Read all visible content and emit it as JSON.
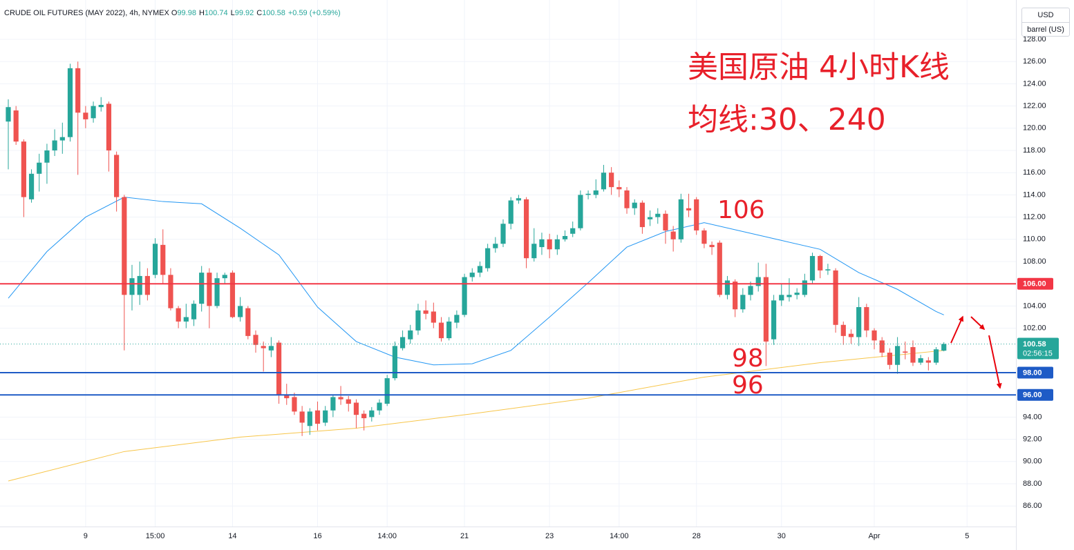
{
  "header": {
    "symbol": "CRUDE OIL FUTURES (MAY 2022), 4h, NYMEX",
    "ohlc": [
      {
        "label": "O",
        "value": "99.98"
      },
      {
        "label": "H",
        "value": "100.74"
      },
      {
        "label": "L",
        "value": "99.92"
      },
      {
        "label": "C",
        "value": "100.58"
      }
    ],
    "change": "+0.59 (+0.59%)"
  },
  "currency": {
    "unit": "USD",
    "measure": "barrel (US)"
  },
  "annotations": {
    "title": "美国原油 4小时K线",
    "ma": "均线:30、240",
    "level_106": "106",
    "level_98": "98",
    "level_96": "96"
  },
  "chart_data": {
    "type": "candlestick",
    "categories": [
      null,
      null,
      null,
      null,
      null,
      null,
      null,
      null,
      null,
      null,
      "9",
      null,
      null,
      null,
      null,
      null,
      null,
      null,
      null,
      "15:00",
      null,
      null,
      null,
      null,
      null,
      null,
      null,
      null,
      null,
      "14",
      null,
      null,
      null,
      null,
      null,
      null,
      null,
      null,
      null,
      null,
      "16",
      null,
      null,
      null,
      null,
      null,
      null,
      null,
      null,
      "14:00",
      null,
      null,
      null,
      null,
      null,
      null,
      null,
      null,
      null,
      "21",
      null,
      null,
      null,
      null,
      null,
      null,
      null,
      null,
      null,
      null,
      "23",
      null,
      null,
      null,
      null,
      null,
      null,
      null,
      null,
      "14:00",
      null,
      null,
      null,
      null,
      null,
      null,
      null,
      null,
      null,
      "28",
      null,
      null,
      null,
      null,
      null,
      null,
      null,
      null,
      null,
      null,
      "30",
      null,
      null,
      null,
      null,
      null,
      null,
      null,
      null,
      null,
      null,
      null,
      "Apr",
      null,
      null,
      null,
      null,
      null,
      null,
      null,
      null,
      null,
      null,
      null,
      "5",
      null,
      null,
      null,
      null,
      null,
      null
    ],
    "open": [
      120.6,
      121.6,
      118.8,
      113.6,
      115.9,
      116.9,
      118.0,
      118.9,
      119.2,
      125.4,
      121.4,
      120.9,
      121.9,
      122.2,
      117.6,
      113.8,
      105.0,
      105.0,
      106.7,
      106.8,
      109.5,
      106.8,
      103.8,
      102.6,
      102.8,
      104.2,
      107.0,
      104.0,
      106.5,
      107.0,
      103.0,
      103.8,
      101.4,
      100.4,
      100.0,
      100.7,
      96.0,
      95.8,
      94.5,
      93.2,
      94.6,
      93.5,
      94.6,
      95.8,
      95.6,
      95.3,
      94.3,
      94.0,
      94.6,
      95.2,
      97.5,
      100.2,
      101.0,
      101.8,
      103.6,
      103.5,
      102.5,
      101.1,
      102.5,
      103.2,
      106.6,
      107.0,
      107.4,
      109.2,
      109.6,
      111.4,
      113.5,
      113.6,
      108.3,
      109.3,
      110.0,
      109.1,
      110.0,
      110.5,
      111.0,
      114.0,
      114.0,
      114.5,
      116.0,
      114.7,
      114.4,
      112.8,
      113.3,
      111.8,
      112.0,
      112.3,
      110.7,
      110.0,
      112.8,
      113.6,
      110.8,
      109.5,
      109.7,
      105.0,
      106.2,
      103.7,
      105.0,
      105.8,
      106.6,
      101.0,
      104.5,
      104.8,
      105.0,
      105.0,
      106.3,
      108.5,
      107.2,
      107.2,
      102.3,
      101.5,
      101.2,
      103.9,
      101.8,
      100.9,
      99.8,
      98.7,
      99.9,
      100.3,
      98.9,
      99.1,
      98.9,
      99.98,
      null,
      null,
      null,
      null,
      null,
      null,
      null,
      null,
      null
    ],
    "high": [
      122.6,
      122.0,
      119.0,
      116.3,
      117.7,
      118.6,
      119.9,
      120.5,
      125.8,
      126.0,
      122.0,
      122.4,
      122.8,
      122.4,
      117.9,
      114.0,
      107.7,
      108.0,
      107.4,
      110.1,
      110.9,
      107.4,
      104.0,
      104.2,
      104.5,
      107.6,
      107.4,
      107.0,
      107.0,
      107.2,
      104.8,
      104.0,
      101.8,
      100.8,
      101.2,
      100.9,
      97.0,
      96.2,
      95.0,
      94.8,
      95.4,
      95.0,
      96.0,
      96.8,
      95.9,
      95.6,
      94.6,
      94.9,
      95.6,
      97.8,
      100.8,
      101.8,
      102.3,
      104.2,
      104.5,
      104.3,
      103.0,
      103.0,
      103.6,
      106.9,
      107.4,
      108.0,
      109.6,
      110.2,
      111.8,
      113.8,
      114.0,
      113.8,
      111.0,
      110.6,
      110.5,
      110.4,
      110.8,
      111.6,
      114.4,
      114.4,
      115.4,
      116.7,
      116.5,
      115.3,
      114.7,
      113.6,
      113.5,
      112.6,
      112.8,
      112.6,
      111.2,
      114.1,
      114.1,
      113.8,
      111.0,
      109.8,
      109.9,
      106.7,
      106.4,
      105.6,
      106.2,
      107.9,
      107.8,
      105.0,
      106.0,
      106.5,
      105.6,
      106.9,
      108.8,
      108.6,
      107.8,
      107.4,
      102.6,
      101.9,
      104.8,
      104.2,
      102.0,
      101.2,
      100.2,
      101.2,
      100.8,
      100.9,
      99.6,
      99.4,
      100.3,
      100.74,
      null,
      null,
      null,
      null,
      null,
      null,
      null,
      null,
      null
    ],
    "low": [
      116.3,
      118.5,
      112.0,
      113.3,
      114.3,
      115.0,
      117.5,
      117.7,
      118.8,
      115.8,
      120.0,
      120.5,
      121.5,
      116.1,
      112.5,
      100.0,
      103.6,
      104.1,
      104.5,
      106.5,
      106.0,
      103.6,
      102.0,
      102.0,
      102.2,
      103.5,
      102.0,
      103.8,
      106.0,
      102.9,
      102.6,
      101.0,
      99.8,
      98.1,
      99.4,
      95.2,
      95.1,
      94.2,
      92.3,
      92.4,
      92.8,
      93.2,
      94.0,
      95.1,
      94.5,
      93.0,
      92.8,
      93.6,
      94.2,
      95.0,
      97.3,
      100.0,
      100.6,
      101.4,
      102.8,
      102.0,
      100.8,
      100.9,
      102.0,
      103.0,
      106.2,
      106.6,
      107.1,
      108.8,
      109.3,
      110.9,
      113.2,
      107.4,
      108.0,
      108.6,
      108.3,
      108.6,
      109.8,
      110.2,
      110.8,
      113.6,
      113.7,
      114.3,
      114.0,
      113.8,
      112.3,
      112.2,
      110.5,
      111.2,
      111.4,
      109.6,
      108.9,
      109.7,
      112.0,
      110.4,
      109.2,
      108.6,
      104.8,
      104.6,
      103.0,
      103.4,
      104.5,
      105.3,
      98.6,
      100.5,
      104.0,
      104.4,
      104.6,
      104.8,
      106.0,
      106.5,
      106.8,
      101.6,
      100.5,
      100.6,
      100.4,
      101.2,
      100.1,
      99.4,
      98.3,
      97.9,
      99.2,
      98.6,
      98.7,
      98.2,
      98.7,
      99.92,
      null,
      null,
      null,
      null,
      null,
      null,
      null,
      null,
      null
    ],
    "close": [
      121.9,
      118.8,
      113.8,
      115.9,
      116.9,
      118.0,
      118.9,
      119.2,
      125.4,
      121.4,
      120.8,
      122.0,
      122.1,
      118.0,
      113.8,
      105.0,
      106.5,
      106.7,
      105.0,
      109.6,
      106.8,
      103.8,
      102.6,
      103.0,
      104.2,
      107.0,
      104.0,
      106.5,
      106.8,
      103.0,
      104.0,
      101.3,
      100.5,
      100.2,
      100.4,
      96.0,
      95.7,
      94.5,
      93.5,
      94.5,
      93.4,
      94.6,
      95.8,
      95.6,
      95.2,
      94.2,
      93.9,
      94.6,
      95.3,
      97.5,
      100.4,
      101.2,
      101.8,
      103.6,
      103.3,
      102.5,
      101.1,
      102.6,
      103.2,
      106.6,
      107.0,
      107.6,
      109.2,
      109.6,
      111.4,
      113.5,
      113.7,
      108.3,
      109.6,
      110.0,
      109.1,
      110.0,
      110.3,
      111.0,
      114.0,
      114.1,
      114.4,
      116.0,
      114.7,
      114.5,
      112.8,
      113.3,
      111.1,
      112.0,
      112.3,
      110.8,
      110.0,
      113.6,
      112.6,
      110.8,
      109.6,
      109.3,
      105.0,
      106.3,
      103.7,
      105.0,
      105.8,
      106.6,
      100.8,
      104.5,
      105.0,
      105.0,
      105.2,
      106.3,
      108.5,
      107.2,
      107.3,
      102.3,
      101.3,
      101.2,
      103.9,
      101.8,
      100.9,
      99.8,
      98.7,
      100.4,
      99.8,
      98.9,
      99.3,
      98.9,
      100.1,
      100.58,
      null,
      null,
      null,
      null,
      null,
      null,
      null,
      null,
      null
    ],
    "up_color": "#26a69a",
    "down_color": "#ef5350",
    "ylim": [
      84.15,
      131.54
    ],
    "yticks": [
      {
        "value": 86,
        "label": "86.00"
      },
      {
        "value": 88,
        "label": "88.00"
      },
      {
        "value": 90,
        "label": "90.00"
      },
      {
        "value": 92,
        "label": "92.00"
      },
      {
        "value": 94,
        "label": "94.00"
      },
      {
        "value": 102,
        "label": "102.00"
      },
      {
        "value": 104,
        "label": "104.00"
      },
      {
        "value": 108,
        "label": "108.00"
      },
      {
        "value": 110,
        "label": "110.00"
      },
      {
        "value": 112,
        "label": "112.00"
      },
      {
        "value": 114,
        "label": "114.00"
      },
      {
        "value": 116,
        "label": "116.00"
      },
      {
        "value": 118,
        "label": "118.00"
      },
      {
        "value": 120,
        "label": "120.00"
      },
      {
        "value": 122,
        "label": "122.00"
      },
      {
        "value": 124,
        "label": "124.00"
      },
      {
        "value": 126,
        "label": "126.00"
      },
      {
        "value": 128,
        "label": "128.00"
      }
    ],
    "grid": true,
    "series": [
      {
        "type": "line",
        "color": "#2196f3",
        "x": [
          0,
          5,
          10,
          15,
          20,
          25,
          30,
          35,
          40,
          45,
          50,
          55,
          60,
          65,
          70,
          75,
          80,
          85,
          90,
          95,
          100,
          105,
          110,
          115,
          120,
          121
        ],
        "values": [
          104.7,
          108.9,
          112.0,
          113.8,
          113.4,
          113.2,
          111.0,
          108.6,
          103.9,
          100.8,
          99.4,
          98.7,
          98.8,
          100.0,
          103.0,
          106.1,
          109.3,
          110.7,
          111.5,
          110.7,
          109.9,
          109.1,
          107.0,
          105.5,
          103.5,
          103.2
        ]
      },
      {
        "type": "line",
        "color": "#f7c548",
        "x": [
          0,
          15,
          30,
          45,
          60,
          75,
          90,
          105,
          121
        ],
        "values": [
          88.25,
          90.9,
          92.2,
          93.0,
          94.3,
          95.7,
          97.6,
          98.9,
          100.0
        ]
      }
    ],
    "hlines": [
      {
        "value": 106,
        "label": "106.00",
        "color": "#f23645"
      },
      {
        "value": 98,
        "label": "98.00",
        "color": "#1e5bc6"
      },
      {
        "value": 96,
        "label": "96.00",
        "color": "#1e5bc6"
      }
    ],
    "last_price": {
      "value": 100.58,
      "label": "100.58",
      "countdown": "02:56:15",
      "color": "#26a69a"
    }
  }
}
